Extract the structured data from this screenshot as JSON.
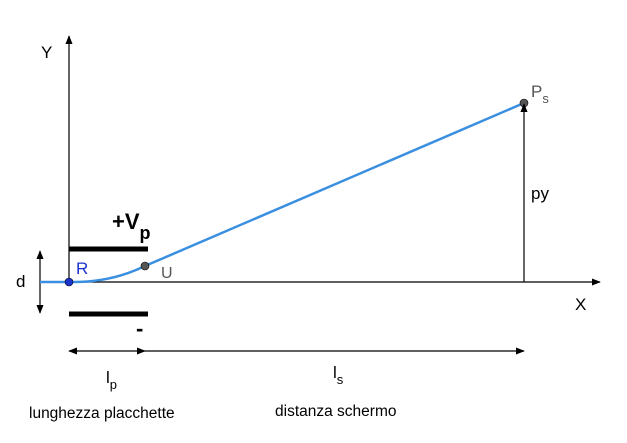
{
  "labels": {
    "y_axis": "Y",
    "x_axis": "X",
    "d": "d",
    "point_r": "R",
    "point_u": "U",
    "point_ps_main": "P",
    "point_ps_sub": "s",
    "py": "py",
    "plus_v_main": "+V",
    "plus_v_sub": "p",
    "minus": "-",
    "lp_main": "l",
    "lp_sub": "p",
    "ls_main": "l",
    "ls_sub": "s",
    "lunghezza": "lunghezza placchette",
    "distanza": "distanza schermo"
  },
  "colors": {
    "trajectory": "#3a8fe0",
    "point_r": "#1a33cc",
    "point_grey": "#555555",
    "ps_label": "#555555",
    "r_label": "#1a33cc",
    "u_label": "#555555"
  }
}
